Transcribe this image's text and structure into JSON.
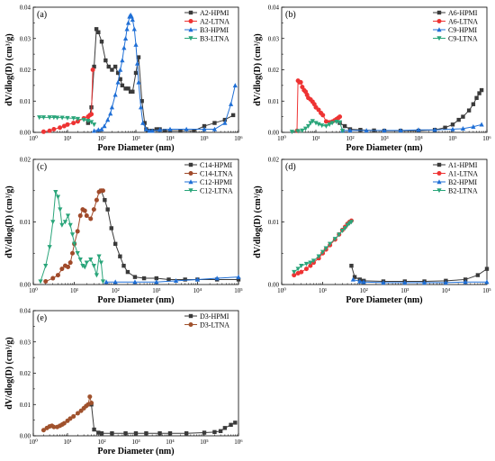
{
  "colors": {
    "HPMI_dark": "#3a3a3a",
    "LTNA_red": "#ee3333",
    "HPMI_blue": "#1f6fd6",
    "LTNA_green": "#2aa57a",
    "C14_LTNA": "#a04a2a",
    "D3_LTNA": "#a0522d"
  },
  "chart_data": [
    {
      "type": "line",
      "panel_label": "(a)",
      "xlabel": "Pore Diameter (nm)",
      "ylabel": "dV/dlog(D) (cm³/g)",
      "x_scale": "log",
      "xlim": [
        1,
        1000000
      ],
      "ylim": [
        0,
        0.04
      ],
      "y_ticks": [
        "0.00",
        "0.01",
        "0.02",
        "0.03",
        "0.04"
      ],
      "x_ticks": [
        "10⁰",
        "10¹",
        "10²",
        "10³",
        "10⁴",
        "10⁵",
        "10⁶"
      ],
      "legend_position": "top-right",
      "series": [
        {
          "name": "A2-HPMI",
          "color": "#3a3a3a",
          "marker": "square",
          "x": [
            40,
            50,
            60,
            70,
            80,
            100,
            130,
            160,
            200,
            250,
            300,
            350,
            400,
            500,
            600,
            700,
            800,
            1000,
            1200,
            1500,
            1800,
            2000,
            2200,
            2500,
            3000,
            4000,
            5000,
            7000,
            10000,
            20000,
            50000,
            100000,
            200000,
            400000,
            700000
          ],
          "y": [
            0.003,
            0.008,
            0.021,
            0.033,
            0.032,
            0.029,
            0.023,
            0.021,
            0.02,
            0.021,
            0.019,
            0.017,
            0.015,
            0.014,
            0.014,
            0.013,
            0.013,
            0.019,
            0.024,
            0.01,
            0.003,
            0.001,
            0.0005,
            0.0005,
            0.0005,
            0.001,
            0.001,
            0.0005,
            0.0005,
            0.0005,
            0.0005,
            0.002,
            0.003,
            0.004,
            0.0055
          ]
        },
        {
          "name": "A2-LTNA",
          "color": "#ee3333",
          "marker": "circle",
          "x": [
            2,
            3,
            4,
            6,
            8,
            10,
            15,
            20,
            30,
            40,
            45,
            50,
            55
          ],
          "y": [
            0.0002,
            0.0005,
            0.001,
            0.0015,
            0.002,
            0.0025,
            0.003,
            0.0035,
            0.0045,
            0.005,
            0.0055,
            0.0058,
            0.02
          ]
        },
        {
          "name": "B3-HPMI",
          "color": "#1f6fd6",
          "marker": "triangle",
          "x": [
            60,
            80,
            100,
            120,
            150,
            180,
            200,
            250,
            300,
            350,
            400,
            450,
            500,
            550,
            600,
            650,
            700,
            750,
            800,
            900,
            1000,
            1100,
            1200,
            1400,
            1600,
            2000,
            2500,
            3000,
            5000,
            10000,
            30000,
            100000,
            200000,
            400000,
            600000,
            800000
          ],
          "y": [
            0.0005,
            0.0008,
            0.001,
            0.002,
            0.004,
            0.006,
            0.008,
            0.012,
            0.016,
            0.02,
            0.023,
            0.027,
            0.03,
            0.033,
            0.035,
            0.037,
            0.0375,
            0.037,
            0.036,
            0.033,
            0.028,
            0.022,
            0.016,
            0.008,
            0.003,
            0.001,
            0.0005,
            0.0005,
            0.0008,
            0.001,
            0.001,
            0.001,
            0.001,
            0.003,
            0.009,
            0.015
          ]
        },
        {
          "name": "B3-LTNA",
          "color": "#2aa57a",
          "marker": "inverted-triangle",
          "x": [
            1.5,
            2,
            3,
            4,
            5,
            7,
            10,
            15,
            20,
            30,
            40,
            50,
            60
          ],
          "y": [
            0.0048,
            0.0048,
            0.0048,
            0.0048,
            0.0047,
            0.0047,
            0.0046,
            0.0045,
            0.0043,
            0.004,
            0.0037,
            0.0033,
            0.0025
          ]
        }
      ]
    },
    {
      "type": "line",
      "panel_label": "(b)",
      "xlabel": "Pore Diameter (nm)",
      "ylabel": "dV/dlog(D) (cm³/g)",
      "x_scale": "log",
      "xlim": [
        1,
        1000000
      ],
      "ylim": [
        0,
        0.04
      ],
      "y_ticks": [
        "0.00",
        "0.01",
        "0.02",
        "0.03",
        "0.04"
      ],
      "x_ticks": [
        "10⁰",
        "10¹",
        "10²",
        "10³",
        "10⁴",
        "10⁵",
        "10⁶"
      ],
      "legend_position": "top-right",
      "series": [
        {
          "name": "A6-HPMI",
          "color": "#3a3a3a",
          "marker": "square",
          "x": [
            50,
            70,
            100,
            200,
            500,
            1000,
            3000,
            10000,
            30000,
            60000,
            100000,
            150000,
            200000,
            300000,
            400000,
            500000,
            600000,
            700000
          ],
          "y": [
            0.003,
            0.002,
            0.001,
            0.0008,
            0.0006,
            0.0005,
            0.0005,
            0.0005,
            0.0008,
            0.0015,
            0.0025,
            0.004,
            0.005,
            0.007,
            0.009,
            0.011,
            0.0125,
            0.0135
          ]
        },
        {
          "name": "A6-LTNA",
          "color": "#ee3333",
          "marker": "circle",
          "x": [
            2.8,
            3,
            3.3,
            3.6,
            4,
            4.5,
            5,
            5.5,
            6,
            7,
            8,
            9,
            10,
            12,
            14,
            16,
            20,
            25,
            30,
            35,
            40,
            45,
            50
          ],
          "y": [
            0.0005,
            0.0165,
            0.016,
            0.016,
            0.0145,
            0.0135,
            0.013,
            0.012,
            0.011,
            0.0105,
            0.0098,
            0.009,
            0.008,
            0.0072,
            0.0062,
            0.0055,
            0.0035,
            0.0032,
            0.0034,
            0.0038,
            0.0042,
            0.0046,
            0.005
          ]
        },
        {
          "name": "C9-HPMI",
          "color": "#1f6fd6",
          "marker": "triangle",
          "x": [
            60,
            100,
            300,
            1000,
            3000,
            10000,
            30000,
            100000,
            200000,
            400000,
            700000
          ],
          "y": [
            0.0006,
            0.0006,
            0.0006,
            0.0006,
            0.0006,
            0.0008,
            0.0008,
            0.001,
            0.0012,
            0.0018,
            0.0025
          ]
        },
        {
          "name": "C9-LTNA",
          "color": "#2aa57a",
          "marker": "inverted-triangle",
          "x": [
            2,
            3,
            4,
            5,
            6,
            7,
            8,
            10,
            12,
            15,
            20,
            25,
            30,
            40,
            50,
            60
          ],
          "y": [
            0.0002,
            0.0004,
            0.0006,
            0.0012,
            0.002,
            0.003,
            0.0036,
            0.003,
            0.0026,
            0.0022,
            0.002,
            0.0025,
            0.003,
            0.0034,
            0.0032,
            0.0005
          ]
        }
      ]
    },
    {
      "type": "line",
      "panel_label": "(c)",
      "xlabel": "Pore Diameter (nm)",
      "ylabel": "dV/dlog(D) (cm³/g)",
      "x_scale": "log",
      "xlim": [
        1,
        100000
      ],
      "ylim": [
        0,
        0.02
      ],
      "y_ticks": [
        "0.00",
        "0.01",
        "0.02"
      ],
      "x_ticks": [
        "10⁰",
        "10¹",
        "10²",
        "10³",
        "10⁴",
        "10⁵"
      ],
      "legend_position": "top-right",
      "series": [
        {
          "name": "C14-HPMI",
          "color": "#3a3a3a",
          "marker": "square",
          "x": [
            45,
            55,
            65,
            80,
            100,
            130,
            160,
            200,
            300,
            500,
            1000,
            2000,
            5000,
            10000,
            30000,
            100000
          ],
          "y": [
            0.015,
            0.0135,
            0.012,
            0.009,
            0.0065,
            0.0045,
            0.003,
            0.002,
            0.0012,
            0.001,
            0.001,
            0.0008,
            0.0008,
            0.0008,
            0.0008,
            0.0008
          ]
        },
        {
          "name": "C14-LTNA",
          "color": "#a04a2a",
          "marker": "circle",
          "x": [
            2,
            3,
            4,
            5,
            6,
            7,
            8,
            9,
            10,
            12,
            14,
            16,
            18,
            20,
            25,
            30,
            35,
            40,
            45,
            50
          ],
          "y": [
            0.0005,
            0.001,
            0.0015,
            0.0025,
            0.003,
            0.0028,
            0.0035,
            0.005,
            0.0065,
            0.0085,
            0.011,
            0.012,
            0.0118,
            0.011,
            0.0105,
            0.012,
            0.0135,
            0.0148,
            0.015,
            0.015
          ]
        },
        {
          "name": "C12-HPMI",
          "color": "#1f6fd6",
          "marker": "triangle",
          "x": [
            60,
            100,
            300,
            1000,
            3000,
            10000,
            30000,
            100000
          ],
          "y": [
            0.0004,
            0.0004,
            0.0004,
            0.0004,
            0.0006,
            0.0008,
            0.001,
            0.0012
          ]
        },
        {
          "name": "C12-LTNA",
          "color": "#2aa57a",
          "marker": "inverted-triangle",
          "x": [
            1.5,
            2,
            2.5,
            3,
            3.5,
            4,
            4.5,
            5,
            6,
            7,
            8,
            9,
            10,
            12,
            14,
            16,
            18,
            20,
            25,
            30,
            35,
            40,
            45,
            50
          ],
          "y": [
            0.0005,
            0.003,
            0.006,
            0.01,
            0.0148,
            0.014,
            0.012,
            0.0095,
            0.01,
            0.011,
            0.0095,
            0.008,
            0.0065,
            0.005,
            0.004,
            0.003,
            0.0028,
            0.0035,
            0.004,
            0.003,
            0.0015,
            0.0045,
            0.0035,
            0.0005
          ]
        }
      ]
    },
    {
      "type": "line",
      "panel_label": "(d)",
      "xlabel": "Pore Diameter (nm)",
      "ylabel": "dV/dlog(D) (cm³/g)",
      "x_scale": "log",
      "xlim": [
        1,
        100000
      ],
      "ylim": [
        0,
        0.02
      ],
      "y_ticks": [
        "0.00",
        "0.01",
        "0.02"
      ],
      "x_ticks": [
        "10⁰",
        "10¹",
        "10²",
        "10³",
        "10⁴",
        "10⁵"
      ],
      "legend_position": "top-right",
      "series": [
        {
          "name": "A1-HPMI",
          "color": "#3a3a3a",
          "marker": "square",
          "x": [
            50,
            60,
            80,
            100,
            300,
            1000,
            3000,
            10000,
            30000,
            60000,
            100000
          ],
          "y": [
            0.003,
            0.0012,
            0.0008,
            0.0006,
            0.0005,
            0.0005,
            0.0005,
            0.0006,
            0.0008,
            0.0015,
            0.0025
          ]
        },
        {
          "name": "A1-LTNA",
          "color": "#ee3333",
          "marker": "circle",
          "x": [
            2,
            2.5,
            3,
            4,
            5,
            6,
            8,
            10,
            12,
            15,
            20,
            25,
            30,
            35,
            40,
            45,
            50
          ],
          "y": [
            0.0015,
            0.0018,
            0.002,
            0.0025,
            0.003,
            0.0035,
            0.0042,
            0.005,
            0.0056,
            0.0063,
            0.0072,
            0.008,
            0.0087,
            0.0092,
            0.0097,
            0.01,
            0.0102
          ]
        },
        {
          "name": "B2-HPMI",
          "color": "#1f6fd6",
          "marker": "triangle",
          "x": [
            55,
            80,
            100,
            300,
            1000,
            3000,
            10000,
            30000,
            100000
          ],
          "y": [
            0.0008,
            0.0005,
            0.0004,
            0.0003,
            0.0003,
            0.0003,
            0.0003,
            0.0004,
            0.0004
          ]
        },
        {
          "name": "B2-LTNA",
          "color": "#2aa57a",
          "marker": "inverted-triangle",
          "x": [
            2,
            2.5,
            3,
            4,
            5,
            6,
            8,
            10,
            12,
            15,
            20,
            25,
            30,
            35,
            40,
            45,
            50
          ],
          "y": [
            0.002,
            0.0025,
            0.003,
            0.0033,
            0.0035,
            0.0038,
            0.0045,
            0.0052,
            0.0058,
            0.0065,
            0.0073,
            0.008,
            0.0086,
            0.009,
            0.0095,
            0.0098,
            0.01
          ]
        }
      ]
    },
    {
      "type": "line",
      "panel_label": "(e)",
      "xlabel": "Pore Diameter (nm)",
      "ylabel": "dV/dlog(D) (cm³/g)",
      "x_scale": "log",
      "xlim": [
        1,
        1000000
      ],
      "ylim": [
        0,
        0.04
      ],
      "y_ticks": [
        "0.00",
        "0.01",
        "0.02",
        "0.03",
        "0.04"
      ],
      "x_ticks": [
        "10⁰",
        "10¹",
        "10²",
        "10³",
        "10⁴",
        "10⁵",
        "10⁶"
      ],
      "legend_position": "top-right",
      "series": [
        {
          "name": "D3-HPMI",
          "color": "#3a3a3a",
          "marker": "square",
          "x": [
            50,
            60,
            80,
            100,
            200,
            500,
            1000,
            2000,
            5000,
            10000,
            30000,
            100000,
            200000,
            300000,
            400000,
            600000,
            800000
          ],
          "y": [
            0.01,
            0.002,
            0.001,
            0.0008,
            0.0008,
            0.0008,
            0.0008,
            0.0008,
            0.0008,
            0.0008,
            0.0008,
            0.001,
            0.0012,
            0.0015,
            0.0025,
            0.0035,
            0.0042
          ]
        },
        {
          "name": "D3-LTNA",
          "color": "#a0522d",
          "marker": "circle",
          "x": [
            2,
            2.5,
            3,
            3.5,
            4,
            5,
            6,
            7,
            8,
            10,
            12,
            15,
            20,
            25,
            30,
            35,
            40,
            45,
            50
          ],
          "y": [
            0.0018,
            0.0025,
            0.003,
            0.0032,
            0.0028,
            0.0028,
            0.0032,
            0.0036,
            0.004,
            0.0048,
            0.0055,
            0.0062,
            0.0072,
            0.008,
            0.0088,
            0.0095,
            0.01,
            0.0125,
            0.0105
          ]
        }
      ]
    }
  ]
}
